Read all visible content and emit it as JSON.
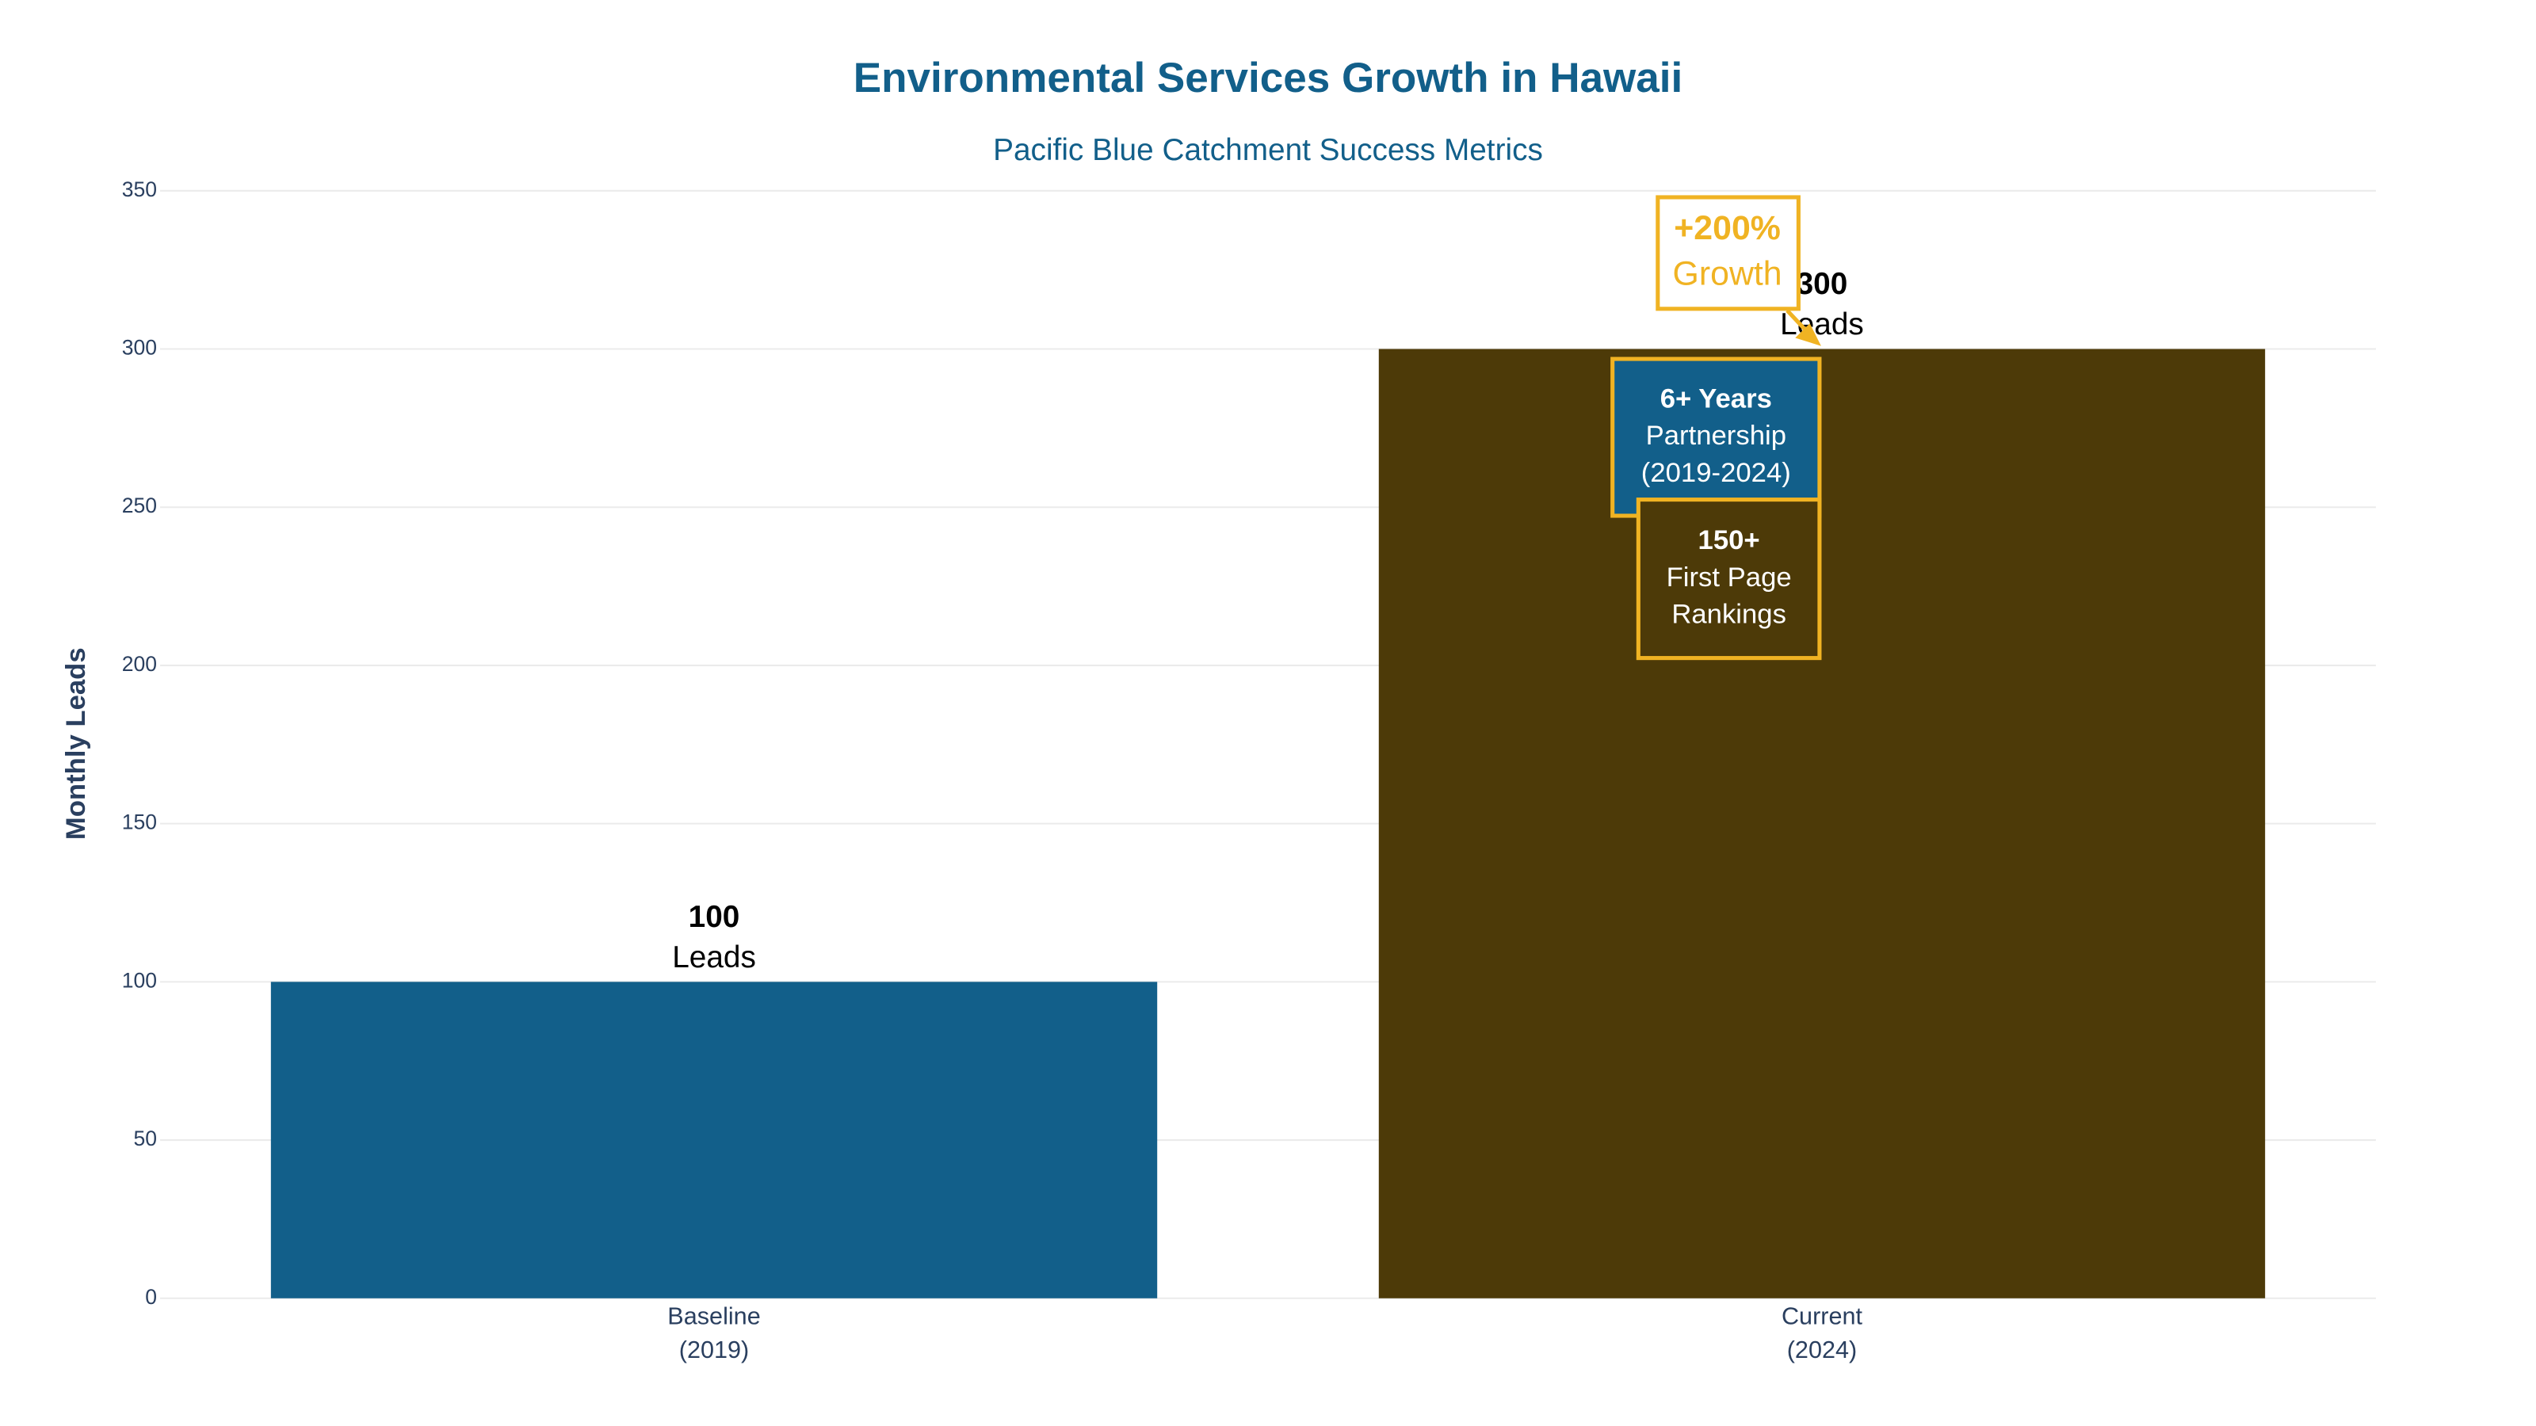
{
  "chart_data": {
    "type": "bar",
    "title": "Environmental Services Growth in Hawaii",
    "subtitle": "Pacific Blue Catchment Success Metrics",
    "y_label": "Monthly Leads",
    "categories": [
      "Baseline (2019)",
      "Current (2024)"
    ],
    "values": [
      100,
      300
    ],
    "value_labels": [
      "100 Leads",
      "300 Leads"
    ],
    "colors": [
      "#125f8a",
      "#4d3a08"
    ],
    "ylim": [
      0,
      350
    ],
    "yticks": [
      0,
      50,
      100,
      150,
      200,
      250,
      300,
      350
    ],
    "grid": true,
    "annotations": [
      {
        "lines": [
          "+200%",
          "Growth"
        ]
      },
      {
        "lines": [
          "6+ Years",
          "Partnership",
          "(2019-2024)"
        ]
      },
      {
        "lines": [
          "150+",
          "First Page",
          "Rankings"
        ]
      }
    ]
  }
}
